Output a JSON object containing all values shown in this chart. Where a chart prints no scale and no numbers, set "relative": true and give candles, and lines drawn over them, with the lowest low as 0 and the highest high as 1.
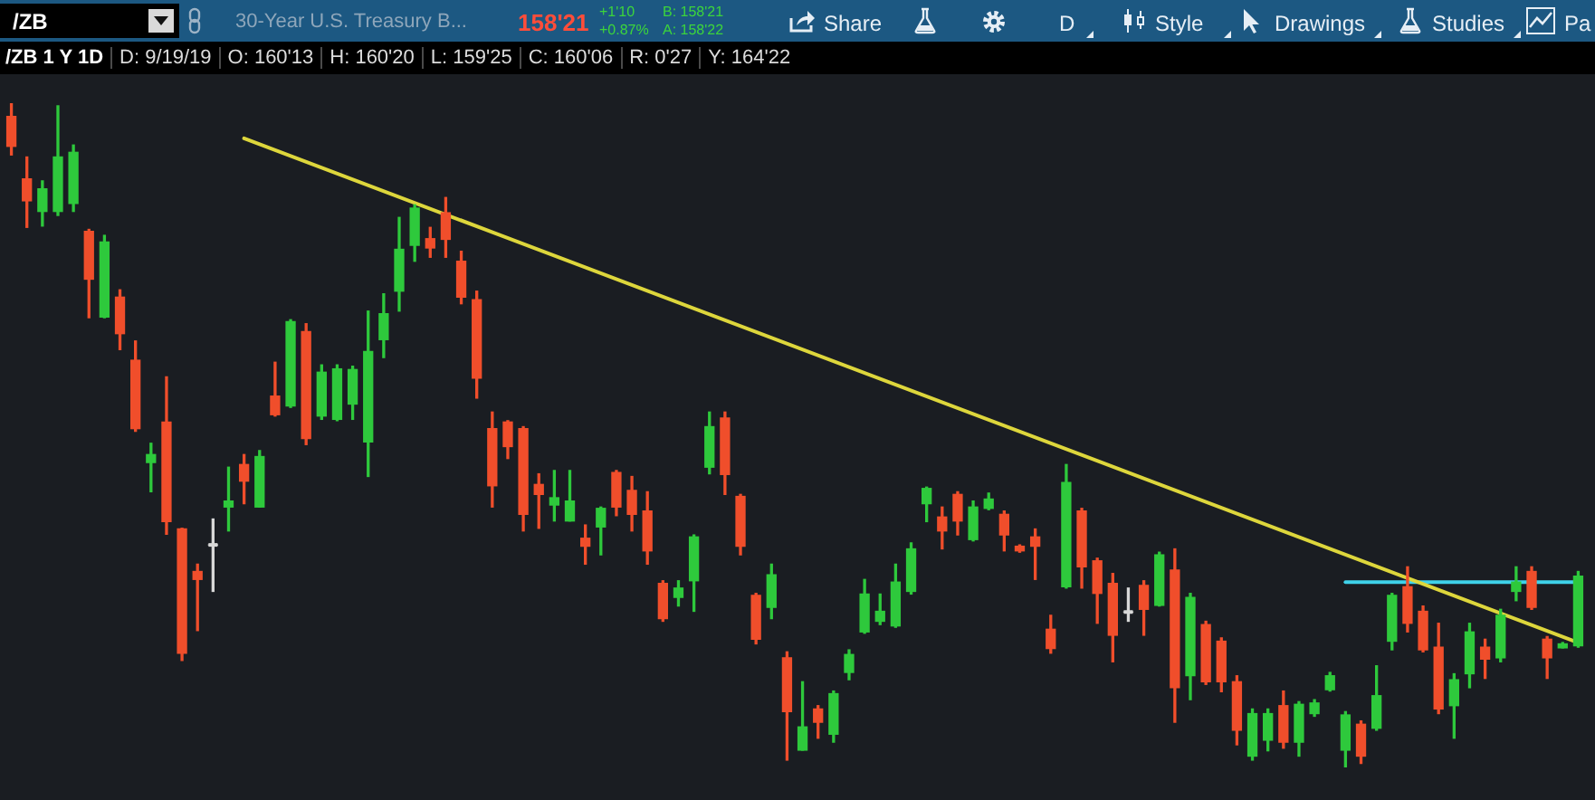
{
  "chart_data": {
    "type": "candlestick",
    "title": "30-Year U.S. Treasury B...",
    "subtitle": "/ZB 1 Y 1D",
    "annotations": [
      "/ZB",
      "158'21",
      "+1'10",
      "+0.87%",
      "B: 158'21",
      "A: 158'22",
      "Share",
      "D",
      "Style",
      "Drawings",
      "Studies",
      "Pa",
      "D: 9/19/19",
      "O: 160'13",
      "H: 160'20",
      "L: 159'25",
      "C: 160'06",
      "R: 0'27",
      "Y: 164'22"
    ],
    "relative": true,
    "tick_labels": false,
    "marker": "none",
    "categories": [
      null,
      null,
      null,
      null,
      null,
      null,
      null,
      null,
      null,
      null,
      null,
      null,
      null,
      null,
      null,
      null,
      null,
      null,
      null,
      null,
      null,
      null,
      null,
      null,
      null,
      null,
      null,
      null,
      null,
      null,
      null,
      null,
      null,
      null,
      null,
      null,
      null,
      null,
      null,
      null,
      null,
      null,
      null,
      null,
      null,
      null,
      null,
      null,
      null,
      null,
      null,
      null,
      null,
      null,
      null,
      null,
      null,
      null,
      null,
      null,
      null,
      null,
      null,
      null,
      null,
      null,
      null,
      null,
      null,
      null,
      null,
      null,
      null,
      null,
      null,
      null,
      null,
      null,
      null,
      null,
      null,
      null,
      null,
      null,
      null,
      null,
      null,
      null,
      null,
      null,
      null,
      null,
      null,
      null,
      null,
      null,
      null,
      null,
      null,
      null,
      null,
      null
    ],
    "ohlc": [
      [
        0.98,
        1,
        0.922,
        0.935
      ],
      [
        0.886,
        0.919,
        0.813,
        0.853
      ],
      [
        0.837,
        0.883,
        0.815,
        0.871
      ],
      [
        0.837,
        0.996,
        0.831,
        0.919
      ],
      [
        0.849,
        0.937,
        0.837,
        0.926
      ],
      [
        0.807,
        0.81,
        0.677,
        0.735
      ],
      [
        0.678,
        0.801,
        0.677,
        0.791
      ],
      [
        0.708,
        0.719,
        0.629,
        0.653
      ],
      [
        0.613,
        0.642,
        0.506,
        0.51
      ],
      [
        0.459,
        0.488,
        0.415,
        0.471
      ],
      [
        0.52,
        0.588,
        0.351,
        0.37
      ],
      [
        0.359,
        0.36,
        0.161,
        0.172
      ],
      [
        0.295,
        0.306,
        0.206,
        0.283
      ],
      [
        0.335,
        0.374,
        0.265,
        0.335
      ],
      [
        0.392,
        0.452,
        0.356,
        0.401
      ],
      [
        0.456,
        0.471,
        0.397,
        0.431
      ],
      [
        0.392,
        0.477,
        0.392,
        0.468
      ],
      [
        0.559,
        0.61,
        0.529,
        0.531
      ],
      [
        0.544,
        0.674,
        0.542,
        0.671
      ],
      [
        0.656,
        0.668,
        0.486,
        0.495
      ],
      [
        0.529,
        0.606,
        0.524,
        0.595
      ],
      [
        0.524,
        0.606,
        0.522,
        0.6
      ],
      [
        0.547,
        0.604,
        0.524,
        0.599
      ],
      [
        0.49,
        0.687,
        0.438,
        0.626
      ],
      [
        0.644,
        0.713,
        0.617,
        0.683
      ],
      [
        0.717,
        0.828,
        0.687,
        0.78
      ],
      [
        0.786,
        0.847,
        0.762,
        0.842
      ],
      [
        0.796,
        0.813,
        0.768,
        0.782
      ],
      [
        0.835,
        0.858,
        0.768,
        0.795
      ],
      [
        0.762,
        0.777,
        0.698,
        0.708
      ],
      [
        0.704,
        0.717,
        0.556,
        0.586
      ],
      [
        0.51,
        0.535,
        0.392,
        0.424
      ],
      [
        0.52,
        0.522,
        0.465,
        0.483
      ],
      [
        0.51,
        0.513,
        0.356,
        0.381
      ],
      [
        0.426,
        0.442,
        0.36,
        0.411
      ],
      [
        0.395,
        0.447,
        0.371,
        0.406
      ],
      [
        0.371,
        0.447,
        0.371,
        0.401
      ],
      [
        0.345,
        0.365,
        0.306,
        0.333
      ],
      [
        0.362,
        0.392,
        0.32,
        0.39
      ],
      [
        0.444,
        0.447,
        0.379,
        0.392
      ],
      [
        0.417,
        0.438,
        0.356,
        0.381
      ],
      [
        0.386,
        0.415,
        0.306,
        0.326
      ],
      [
        0.277,
        0.281,
        0.22,
        0.224
      ],
      [
        0.256,
        0.281,
        0.243,
        0.27
      ],
      [
        0.281,
        0.35,
        0.235,
        0.347
      ],
      [
        0.452,
        0.535,
        0.442,
        0.513
      ],
      [
        0.526,
        0.535,
        0.411,
        0.441
      ],
      [
        0.408,
        0.411,
        0.32,
        0.333
      ],
      [
        0.259,
        0.262,
        0.186,
        0.193
      ],
      [
        0.241,
        0.306,
        0.224,
        0.29
      ],
      [
        0.165,
        0.174,
        0.011,
        0.084
      ],
      [
        0.026,
        0.129,
        0.026,
        0.061
      ],
      [
        0.088,
        0.093,
        0.044,
        0.068
      ],
      [
        0.05,
        0.115,
        0.038,
        0.111
      ],
      [
        0.143,
        0.177,
        0.132,
        0.17
      ],
      [
        0.204,
        0.283,
        0.202,
        0.261
      ],
      [
        0.22,
        0.261,
        0.215,
        0.235
      ],
      [
        0.213,
        0.306,
        0.211,
        0.279
      ],
      [
        0.265,
        0.338,
        0.261,
        0.329
      ],
      [
        0.397,
        0.422,
        0.37,
        0.42
      ],
      [
        0.377,
        0.392,
        0.329,
        0.356
      ],
      [
        0.411,
        0.415,
        0.35,
        0.371
      ],
      [
        0.343,
        0.401,
        0.341,
        0.392
      ],
      [
        0.39,
        0.413,
        0.388,
        0.404
      ],
      [
        0.381,
        0.386,
        0.326,
        0.35
      ],
      [
        0.333,
        0.335,
        0.324,
        0.326
      ],
      [
        0.347,
        0.359,
        0.283,
        0.333
      ],
      [
        0.208,
        0.229,
        0.172,
        0.179
      ],
      [
        0.272,
        0.456,
        0.27,
        0.429
      ],
      [
        0.386,
        0.39,
        0.27,
        0.302
      ],
      [
        0.311,
        0.315,
        0.217,
        0.262
      ],
      [
        0.277,
        0.292,
        0.159,
        0.199
      ],
      [
        0.234,
        0.27,
        0.22,
        0.234
      ],
      [
        0.274,
        0.281,
        0.199,
        0.238
      ],
      [
        0.244,
        0.324,
        0.243,
        0.32
      ],
      [
        0.297,
        0.329,
        0.068,
        0.12
      ],
      [
        0.138,
        0.262,
        0.102,
        0.256
      ],
      [
        0.215,
        0.22,
        0.125,
        0.129
      ],
      [
        0.19,
        0.195,
        0.114,
        0.129
      ],
      [
        0.129,
        0.138,
        0.034,
        0.056
      ],
      [
        0.017,
        0.088,
        0.011,
        0.081
      ],
      [
        0.041,
        0.088,
        0.025,
        0.081
      ],
      [
        0.093,
        0.115,
        0.029,
        0.038
      ],
      [
        0.038,
        0.099,
        0.017,
        0.095
      ],
      [
        0.081,
        0.102,
        0.077,
        0.097
      ],
      [
        0.117,
        0.143,
        0.115,
        0.138
      ],
      [
        0.026,
        0.084,
        0,
        0.079
      ],
      [
        0.065,
        0.07,
        0.006,
        0.017
      ],
      [
        0.059,
        0.153,
        0.056,
        0.108
      ],
      [
        0.19,
        0.262,
        0.177,
        0.259
      ],
      [
        0.272,
        0.302,
        0.204,
        0.217
      ],
      [
        0.235,
        0.243,
        0.174,
        0.177
      ],
      [
        0.181,
        0.217,
        0.081,
        0.088
      ],
      [
        0.093,
        0.141,
        0.044,
        0.132
      ],
      [
        0.141,
        0.217,
        0.12,
        0.204
      ],
      [
        0.181,
        0.193,
        0.134,
        0.163
      ],
      [
        0.165,
        0.238,
        0.159,
        0.229
      ],
      [
        0.265,
        0.302,
        0.251,
        0.279
      ],
      [
        0.295,
        0.302,
        0.238,
        0.241
      ],
      [
        0.193,
        0.197,
        0.134,
        0.165
      ],
      [
        0.18,
        0.188,
        0.18,
        0.186
      ],
      [
        0.183,
        0.295,
        0.181,
        0.288
      ]
    ],
    "colors": [
      "#f04e2b",
      "#f04e2b",
      "#2ec93c",
      "#2ec93c",
      "#2ec93c",
      "#f04e2b",
      "#2ec93c",
      "#f04e2b",
      "#f04e2b",
      "#2ec93c",
      "#f04e2b",
      "#f04e2b",
      "#f04e2b",
      "#d8d8d8",
      "#2ec93c",
      "#f04e2b",
      "#2ec93c",
      "#f04e2b",
      "#2ec93c",
      "#f04e2b",
      "#2ec93c",
      "#2ec93c",
      "#2ec93c",
      "#2ec93c",
      "#2ec93c",
      "#2ec93c",
      "#2ec93c",
      "#f04e2b",
      "#f04e2b",
      "#f04e2b",
      "#f04e2b",
      "#f04e2b",
      "#f04e2b",
      "#f04e2b",
      "#f04e2b",
      "#2ec93c",
      "#2ec93c",
      "#f04e2b",
      "#2ec93c",
      "#f04e2b",
      "#f04e2b",
      "#f04e2b",
      "#f04e2b",
      "#2ec93c",
      "#2ec93c",
      "#2ec93c",
      "#f04e2b",
      "#f04e2b",
      "#f04e2b",
      "#2ec93c",
      "#f04e2b",
      "#2ec93c",
      "#f04e2b",
      "#2ec93c",
      "#2ec93c",
      "#2ec93c",
      "#2ec93c",
      "#2ec93c",
      "#2ec93c",
      "#2ec93c",
      "#f04e2b",
      "#f04e2b",
      "#2ec93c",
      "#2ec93c",
      "#f04e2b",
      "#f04e2b",
      "#f04e2b",
      "#f04e2b",
      "#2ec93c",
      "#f04e2b",
      "#f04e2b",
      "#f04e2b",
      "#d8d8d8",
      "#f04e2b",
      "#2ec93c",
      "#f04e2b",
      "#2ec93c",
      "#f04e2b",
      "#f04e2b",
      "#f04e2b",
      "#2ec93c",
      "#2ec93c",
      "#f04e2b",
      "#2ec93c",
      "#2ec93c",
      "#2ec93c",
      "#2ec93c",
      "#f04e2b",
      "#2ec93c",
      "#2ec93c",
      "#f04e2b",
      "#f04e2b",
      "#f04e2b",
      "#2ec93c",
      "#2ec93c",
      "#f04e2b",
      "#2ec93c",
      "#2ec93c",
      "#f04e2b",
      "#f04e2b",
      "#2ec93c",
      "#2ec93c"
    ],
    "series": [
      {
        "type": "line",
        "color": "#ddd63c",
        "values": [
          null,
          null,
          null,
          null,
          null,
          null,
          null,
          null,
          null,
          null,
          null,
          null,
          null,
          null,
          null,
          0.947,
          null,
          null,
          null,
          null,
          null,
          null,
          null,
          null,
          null,
          null,
          null,
          null,
          null,
          null,
          null,
          null,
          null,
          null,
          null,
          null,
          null,
          null,
          null,
          null,
          null,
          null,
          null,
          null,
          null,
          null,
          null,
          null,
          null,
          null,
          null,
          null,
          null,
          null,
          null,
          null,
          null,
          null,
          null,
          null,
          null,
          null,
          null,
          null,
          null,
          null,
          null,
          null,
          null,
          null,
          null,
          null,
          null,
          null,
          null,
          null,
          null,
          null,
          null,
          null,
          null,
          null,
          null,
          null,
          null,
          null,
          null,
          null,
          null,
          null,
          null,
          null,
          null,
          null,
          null,
          null,
          null,
          null,
          null,
          null,
          null,
          0.188
        ]
      },
      {
        "type": "line",
        "color": "#3fd2ea",
        "values": [
          null,
          null,
          null,
          null,
          null,
          null,
          null,
          null,
          null,
          null,
          null,
          null,
          null,
          null,
          null,
          null,
          null,
          null,
          null,
          null,
          null,
          null,
          null,
          null,
          null,
          null,
          null,
          null,
          null,
          null,
          null,
          null,
          null,
          null,
          null,
          null,
          null,
          null,
          null,
          null,
          null,
          null,
          null,
          null,
          null,
          null,
          null,
          null,
          null,
          null,
          null,
          null,
          null,
          null,
          null,
          null,
          null,
          null,
          null,
          null,
          null,
          null,
          null,
          null,
          null,
          null,
          null,
          null,
          null,
          null,
          null,
          null,
          null,
          null,
          null,
          null,
          null,
          null,
          null,
          null,
          null,
          null,
          null,
          null,
          null,
          null,
          0.279,
          null,
          null,
          null,
          null,
          null,
          null,
          null,
          null,
          null,
          null,
          null,
          null,
          null,
          null,
          0.279
        ]
      }
    ]
  }
}
